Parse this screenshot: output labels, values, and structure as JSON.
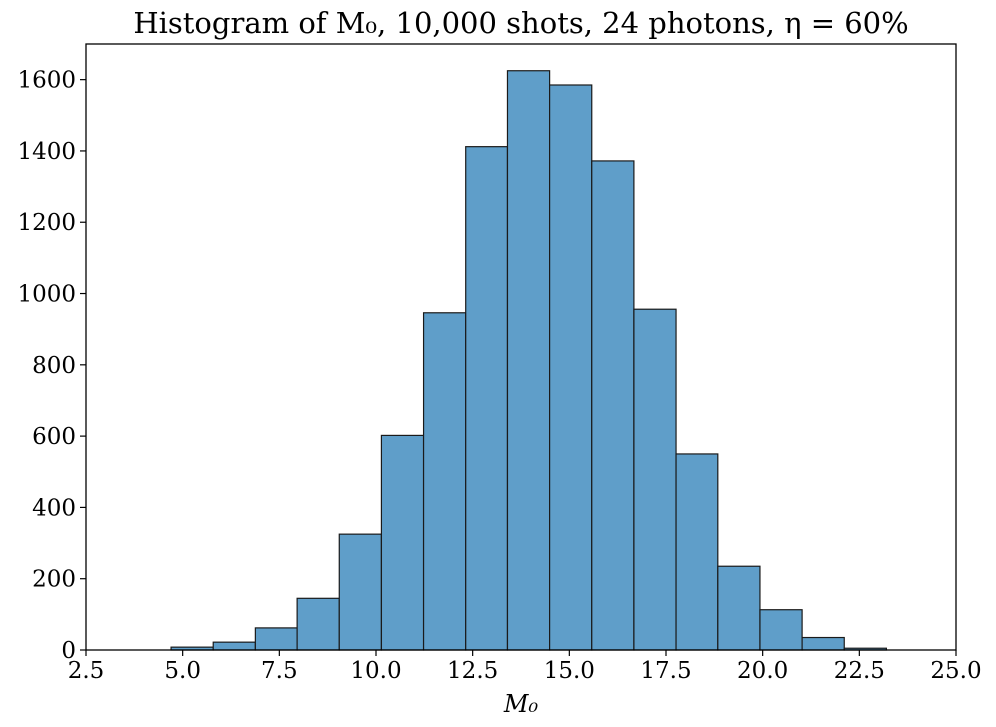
{
  "chart_data": {
    "type": "bar",
    "title": "Histogram of M₀, 10,000 shots, 24 photons, η = 60%",
    "xlabel": "M₀",
    "ylabel": "",
    "xlim": [
      2.5,
      25.0
    ],
    "ylim": [
      0,
      1700
    ],
    "xticks": [
      "2.5",
      "5.0",
      "7.5",
      "10.0",
      "12.5",
      "15.0",
      "17.5",
      "20.0",
      "22.5",
      "25.0"
    ],
    "yticks": [
      "0",
      "200",
      "400",
      "600",
      "800",
      "1000",
      "1200",
      "1400",
      "1600"
    ],
    "bin_edges": [
      4.7,
      5.79,
      6.88,
      7.96,
      9.05,
      10.14,
      11.23,
      12.32,
      13.4,
      14.49,
      15.58,
      16.67,
      17.76,
      18.84,
      19.93,
      21.02,
      22.11,
      23.2
    ],
    "counts": [
      8,
      22,
      62,
      145,
      325,
      602,
      946,
      1412,
      1625,
      1585,
      1372,
      956,
      550,
      235,
      113,
      35,
      5
    ],
    "bar_color": "#5f9ec9",
    "edge_color": "#1a1a1a",
    "grid": false,
    "legend": "none"
  }
}
